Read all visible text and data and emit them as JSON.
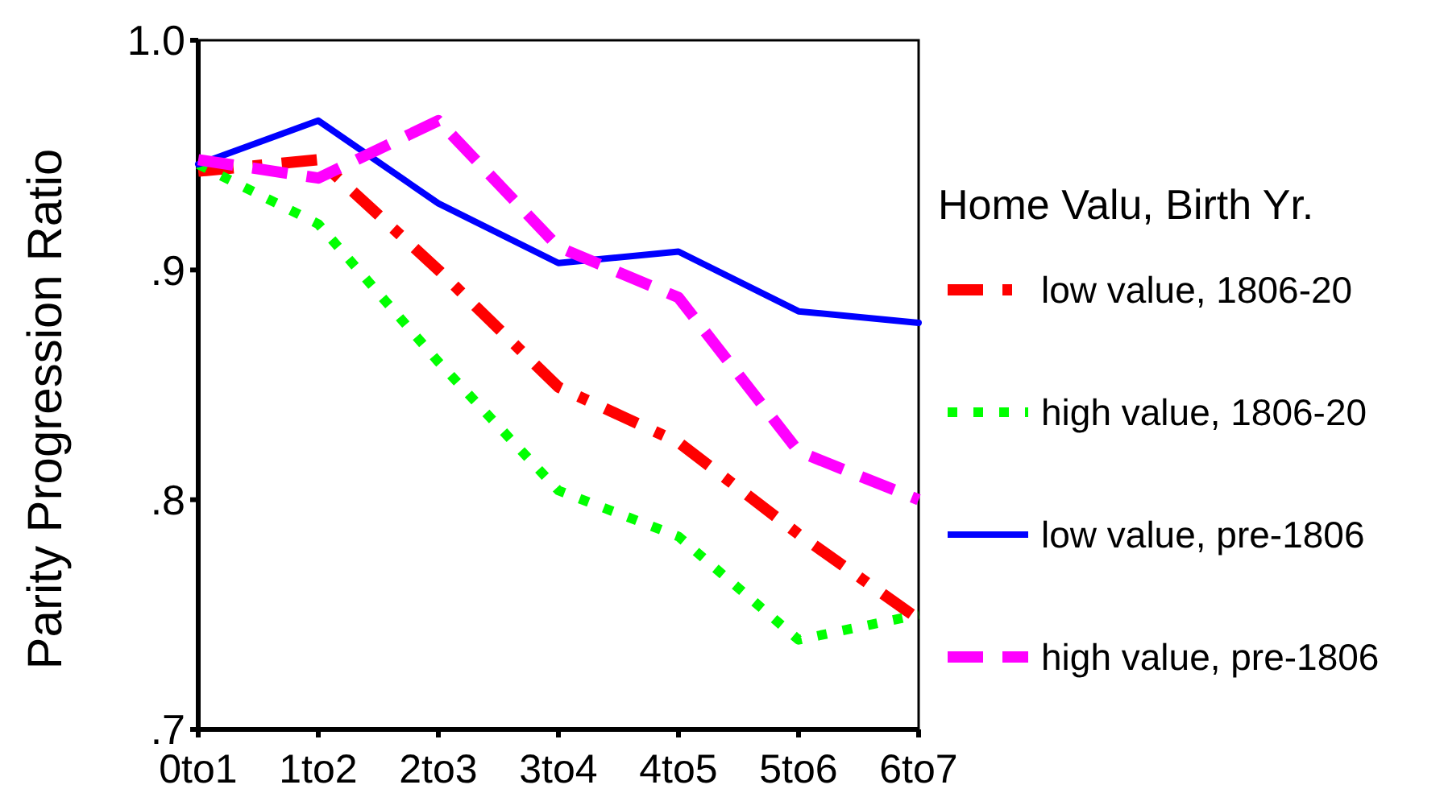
{
  "chart_data": {
    "type": "line",
    "ylabel": "Parity Progression Ratio",
    "legend_title": "Home Valu, Birth Yr.",
    "categories": [
      "0to1",
      "1to2",
      "2to3",
      "3to4",
      "4to5",
      "5to6",
      "6to7"
    ],
    "ylim": [
      0.7,
      1.0
    ],
    "yticks": [
      {
        "value": 0.7,
        "label": ".7"
      },
      {
        "value": 0.8,
        "label": ".8"
      },
      {
        "value": 0.9,
        "label": ".9"
      },
      {
        "value": 1.0,
        "label": "1.0"
      }
    ],
    "grid": false,
    "legend": "right",
    "marker": "none",
    "series": [
      {
        "name": "low value, 1806-20",
        "color": "#ff0000",
        "line_style": "dashdot",
        "values": [
          0.943,
          0.948,
          0.9,
          0.849,
          0.825,
          0.785,
          0.748
        ]
      },
      {
        "name": "high value, 1806-20",
        "color": "#00ff00",
        "line_style": "dotted",
        "values": [
          0.946,
          0.92,
          0.86,
          0.804,
          0.784,
          0.739,
          0.75
        ]
      },
      {
        "name": "low value, pre-1806",
        "color": "#0000ff",
        "line_style": "solid",
        "values": [
          0.946,
          0.965,
          0.929,
          0.903,
          0.908,
          0.882,
          0.877
        ]
      },
      {
        "name": "high value, pre-1806",
        "color": "#ff00ff",
        "line_style": "dashed",
        "values": [
          0.948,
          0.94,
          0.965,
          0.91,
          0.888,
          0.821,
          0.8
        ]
      }
    ]
  }
}
